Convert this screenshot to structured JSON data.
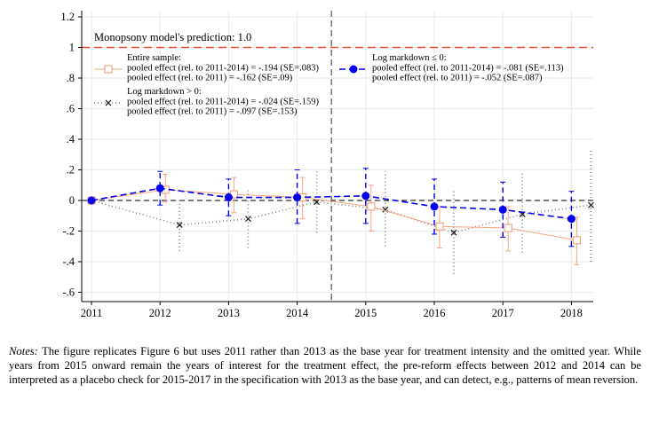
{
  "chart_data": {
    "type": "line",
    "categories": [
      "2011",
      "2012",
      "2013",
      "2014",
      "2015",
      "2016",
      "2017",
      "2018"
    ],
    "y_ticks": [
      "1.2",
      "1",
      ".8",
      ".6",
      ".4",
      ".2",
      "0",
      "-.2",
      "-.4",
      "-.6"
    ],
    "ylim": [
      -0.65,
      1.25
    ],
    "grid": true,
    "vertical_line_between": [
      "2014",
      "2015"
    ],
    "reference_line": {
      "y": 1.0,
      "label": "Monopsony model's prediction: 1.0",
      "color": "#e8503a"
    },
    "zero_line": {
      "y": 0,
      "color": "#000000"
    },
    "series": [
      {
        "key": "entire",
        "color": "#f4a582",
        "marker": "hollow-square",
        "legend_lines": [
          "Entire sample:",
          "pooled effect (rel. to 2011-2014) = -.194 (SE=.083)",
          "pooled effect (rel. to 2011) = -.162 (SE=.09)"
        ],
        "values": [
          0,
          0.07,
          0.04,
          0.02,
          -0.04,
          -0.17,
          -0.18,
          -0.26
        ],
        "ci_low": [
          0,
          -0.01,
          -0.08,
          -0.12,
          -0.2,
          -0.31,
          -0.33,
          -0.42
        ],
        "ci_high": [
          0,
          0.17,
          0.15,
          0.15,
          0.1,
          -0.04,
          -0.04,
          -0.11
        ]
      },
      {
        "key": "markdown_pos",
        "color": "#7f7f7f",
        "marker": "x",
        "legend_lines": [
          "Log markdown > 0:",
          "pooled effect (rel. to 2011-2014) = -.024 (SE=.159)",
          "pooled effect (rel. to 2011) = -.097 (SE=.153)"
        ],
        "values": [
          0,
          -0.16,
          -0.12,
          -0.01,
          -0.06,
          -0.21,
          -0.09,
          -0.03
        ],
        "ci_low": [
          0,
          -0.33,
          -0.31,
          -0.21,
          -0.3,
          -0.48,
          -0.34,
          -0.4
        ],
        "ci_high": [
          0,
          0.01,
          0.07,
          0.19,
          0.19,
          0.06,
          0.19,
          0.34
        ]
      },
      {
        "key": "markdown_nonpos",
        "color": "#0000ee",
        "marker": "filled-circle",
        "legend_lines": [
          "Log markdown ≤ 0:",
          "pooled effect (rel. to 2011-2014) = -.081 (SE=.113)",
          "pooled effect (rel. to 2011) = -.052 (SE=.087)"
        ],
        "values": [
          0,
          0.08,
          0.02,
          0.02,
          0.03,
          -0.04,
          -0.06,
          -0.12
        ],
        "ci_low": [
          0,
          -0.03,
          -0.1,
          -0.15,
          -0.15,
          -0.22,
          -0.24,
          -0.3
        ],
        "ci_high": [
          0,
          0.19,
          0.14,
          0.2,
          0.21,
          0.14,
          0.12,
          0.06
        ]
      }
    ]
  },
  "notes": {
    "label": "Notes:",
    "text": "The figure replicates Figure 6 but uses 2011 rather than 2013 as the base year for treatment intensity and the omitted year. While years from 2015 onward remain the years of interest for the treatment effect, the pre-reform effects between 2012 and 2014 can be interpreted as a placebo check for 2015-2017 in the specification with 2013 as the base year, and can detect, e.g., patterns of mean reversion."
  }
}
